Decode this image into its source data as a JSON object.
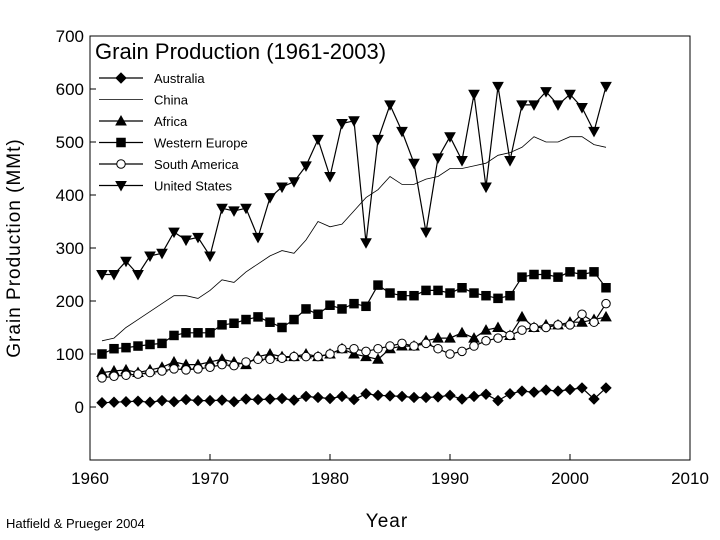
{
  "chart_data": {
    "type": "line",
    "title": "Grain Production (1961-2003)",
    "xlabel": "Year",
    "ylabel": "Grain Production (MMt)",
    "xlim": [
      1960,
      2010
    ],
    "ylim": [
      -100,
      700
    ],
    "xticks": [
      1960,
      1970,
      1980,
      1990,
      2000,
      2010
    ],
    "yticks": [
      0,
      100,
      200,
      300,
      400,
      500,
      600,
      700
    ],
    "legend_position": "top-left",
    "x": [
      1961,
      1962,
      1963,
      1964,
      1965,
      1966,
      1967,
      1968,
      1969,
      1970,
      1971,
      1972,
      1973,
      1974,
      1975,
      1976,
      1977,
      1978,
      1979,
      1980,
      1981,
      1982,
      1983,
      1984,
      1985,
      1986,
      1987,
      1988,
      1989,
      1990,
      1991,
      1992,
      1993,
      1994,
      1995,
      1996,
      1997,
      1998,
      1999,
      2000,
      2001,
      2002,
      2003
    ],
    "series": [
      {
        "name": "Australia",
        "marker": "diamond",
        "values": [
          8,
          9,
          10,
          11,
          9,
          12,
          10,
          14,
          12,
          12,
          13,
          10,
          15,
          14,
          15,
          16,
          13,
          20,
          18,
          16,
          20,
          14,
          25,
          22,
          21,
          20,
          18,
          18,
          19,
          22,
          15,
          20,
          24,
          12,
          25,
          30,
          28,
          32,
          30,
          33,
          36,
          15,
          36
        ]
      },
      {
        "name": "China",
        "marker": "none",
        "values": [
          125,
          130,
          150,
          165,
          180,
          195,
          210,
          210,
          205,
          220,
          240,
          235,
          255,
          270,
          285,
          295,
          290,
          315,
          350,
          340,
          345,
          370,
          395,
          410,
          435,
          420,
          420,
          430,
          435,
          450,
          450,
          455,
          460,
          475,
          480,
          490,
          510,
          500,
          500,
          510,
          510,
          495,
          490
        ]
      },
      {
        "name": "Africa",
        "marker": "triangle",
        "values": [
          65,
          68,
          70,
          65,
          70,
          75,
          85,
          80,
          80,
          85,
          90,
          85,
          80,
          95,
          100,
          95,
          95,
          100,
          95,
          100,
          110,
          100,
          95,
          90,
          110,
          115,
          115,
          125,
          130,
          130,
          140,
          130,
          145,
          150,
          135,
          170,
          150,
          155,
          155,
          160,
          160,
          165,
          170
        ]
      },
      {
        "name": "Western Europe",
        "marker": "square",
        "values": [
          100,
          110,
          112,
          115,
          118,
          120,
          135,
          140,
          140,
          140,
          155,
          158,
          165,
          170,
          160,
          150,
          165,
          185,
          175,
          192,
          185,
          195,
          190,
          230,
          215,
          210,
          210,
          220,
          220,
          215,
          225,
          215,
          210,
          205,
          210,
          245,
          250,
          250,
          245,
          255,
          250,
          255,
          225
        ]
      },
      {
        "name": "South America",
        "marker": "circle",
        "values": [
          55,
          58,
          60,
          62,
          65,
          68,
          72,
          70,
          72,
          75,
          80,
          78,
          85,
          90,
          90,
          92,
          95,
          95,
          95,
          100,
          110,
          110,
          105,
          110,
          115,
          120,
          115,
          120,
          110,
          100,
          105,
          115,
          125,
          130,
          135,
          145,
          150,
          150,
          155,
          155,
          175,
          160,
          195
        ]
      },
      {
        "name": "United States",
        "marker": "triangle-down",
        "values": [
          250,
          250,
          275,
          250,
          285,
          290,
          330,
          315,
          320,
          285,
          375,
          370,
          375,
          320,
          395,
          415,
          425,
          455,
          505,
          435,
          535,
          540,
          310,
          505,
          570,
          520,
          460,
          330,
          470,
          510,
          465,
          590,
          415,
          605,
          465,
          570,
          570,
          595,
          570,
          590,
          565,
          520,
          605
        ]
      }
    ]
  },
  "credit": "Hatfield & Prueger 2004"
}
